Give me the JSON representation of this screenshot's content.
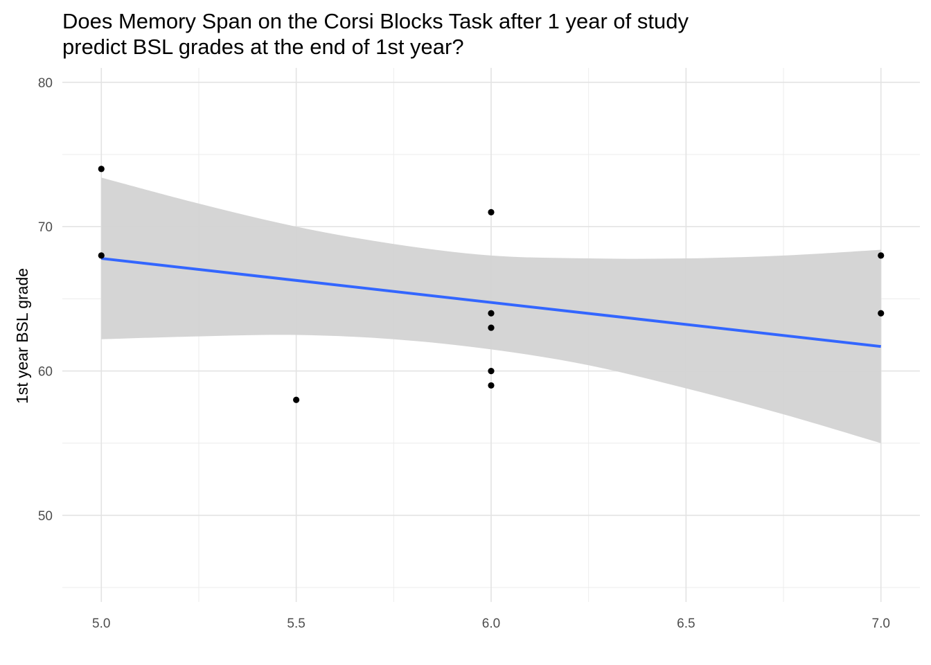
{
  "chart_data": {
    "type": "scatter",
    "title_lines": [
      "Does Memory Span on the Corsi Blocks Task after 1 year of study",
      "predict BSL grades at the end of 1st year?"
    ],
    "xlabel": "",
    "ylabel": "1st year BSL grade",
    "xlim": [
      4.9,
      7.1
    ],
    "ylim": [
      44,
      81
    ],
    "x_ticks": [
      "5.0",
      "5.5",
      "6.0",
      "6.5",
      "7.0"
    ],
    "y_ticks": [
      "50",
      "60",
      "70",
      "80"
    ],
    "grid": true,
    "points": [
      {
        "x": 5.0,
        "y": 74
      },
      {
        "x": 5.0,
        "y": 68
      },
      {
        "x": 5.5,
        "y": 58
      },
      {
        "x": 6.0,
        "y": 71
      },
      {
        "x": 6.0,
        "y": 64
      },
      {
        "x": 6.0,
        "y": 63
      },
      {
        "x": 6.0,
        "y": 60
      },
      {
        "x": 6.0,
        "y": 59
      },
      {
        "x": 7.0,
        "y": 68
      },
      {
        "x": 7.0,
        "y": 64
      }
    ],
    "fit_line": {
      "method": "linear",
      "color": "#3366ff",
      "x": [
        5.0,
        7.0
      ],
      "y": [
        67.8,
        61.7
      ]
    },
    "confidence_band": {
      "color": "#d3d3d3",
      "x": [
        5.0,
        5.25,
        5.5,
        5.75,
        6.0,
        6.25,
        6.5,
        6.75,
        7.0
      ],
      "upper": [
        73.4,
        71.6,
        70.0,
        68.8,
        68.0,
        67.8,
        67.8,
        68.0,
        68.4
      ],
      "lower": [
        62.2,
        62.4,
        62.5,
        62.2,
        61.5,
        60.4,
        58.8,
        57.0,
        55.0
      ]
    },
    "point_color": "#000000"
  }
}
